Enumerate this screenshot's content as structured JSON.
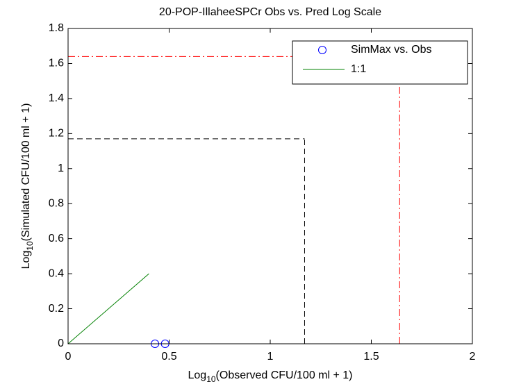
{
  "chart_data": {
    "type": "scatter",
    "title": "20-POP-IllaheeSPCr Obs vs. Pred Log Scale",
    "x_label": [
      "Log",
      "10",
      "(Observed CFU/100 ml + 1)"
    ],
    "y_label": [
      "Log",
      "10",
      "(Simulated CFU/100 ml + 1)"
    ],
    "xlim": [
      0,
      2
    ],
    "ylim": [
      0,
      1.8
    ],
    "xticks": [
      0,
      0.5,
      1,
      1.5,
      2
    ],
    "yticks": [
      0,
      0.2,
      0.4,
      0.6,
      0.8,
      1,
      1.2,
      1.4,
      1.6,
      1.8
    ],
    "series": [
      {
        "name": "SimMax vs. Obs",
        "color": "#0000ff",
        "mode": "markers",
        "x": [
          0.43,
          0.48
        ],
        "values": [
          0,
          0
        ]
      },
      {
        "name": "1:1",
        "color": "#008000",
        "mode": "line",
        "x": [
          0,
          0.4
        ],
        "values": [
          0,
          0.4
        ]
      }
    ],
    "reference_lines": [
      {
        "value": 1.17,
        "color": "#000000",
        "dash": "8 5"
      },
      {
        "value": 1.64,
        "color": "#ff0000",
        "dash": "10 4 2 4"
      }
    ],
    "legend": "northeast"
  }
}
